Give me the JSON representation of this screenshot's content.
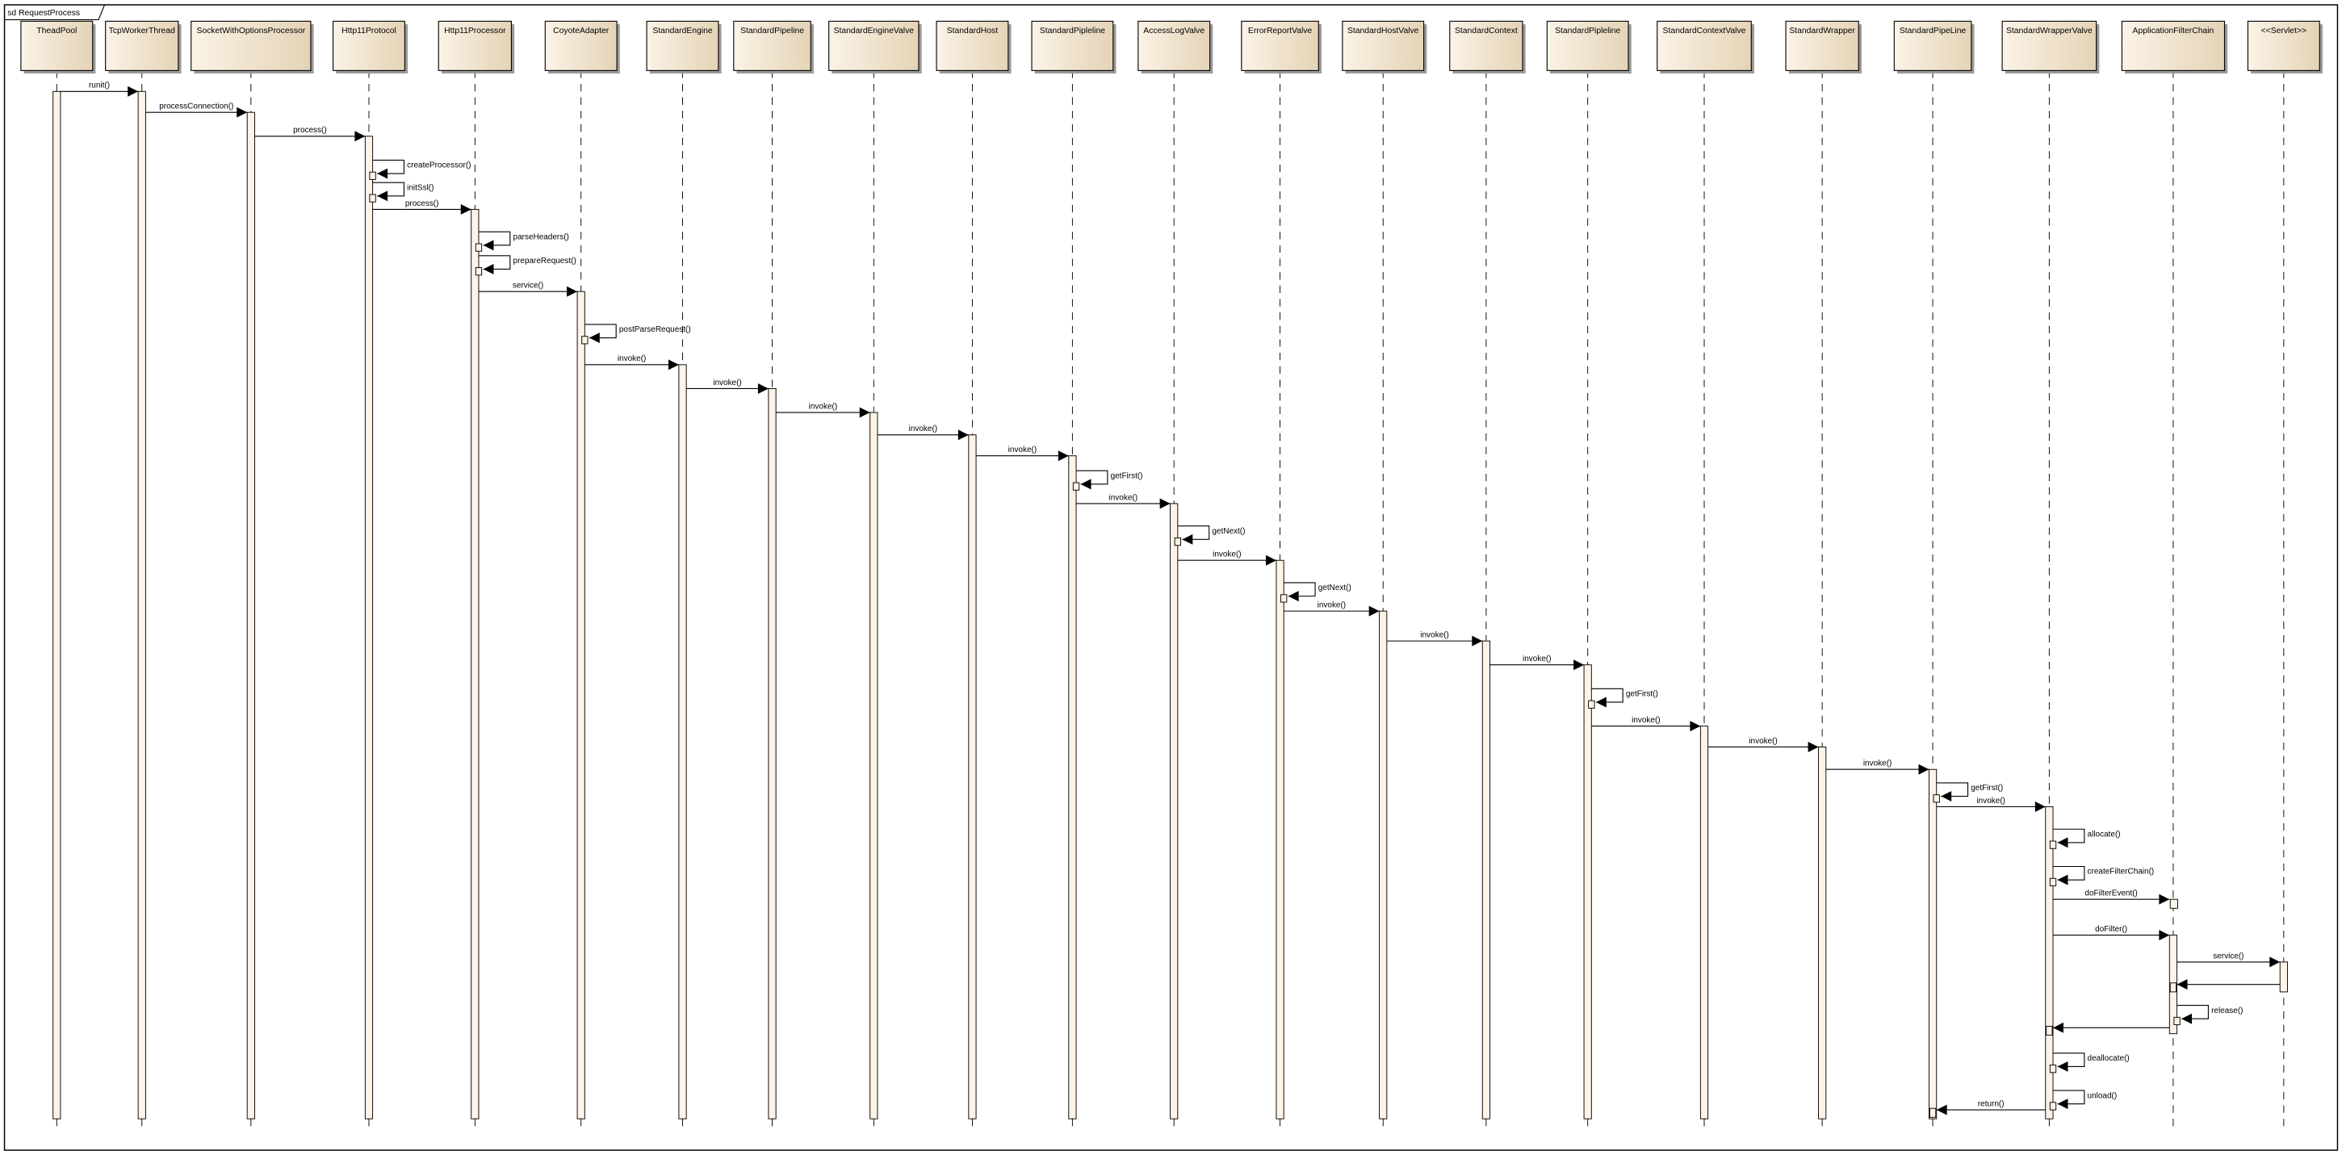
{
  "frame": {
    "title": "sd RequestProcess"
  },
  "colors": {
    "box_light": "#fbf3e6",
    "box_dark": "#e4d3b6",
    "activation": "#fdf3e6",
    "line": "#000000",
    "shadow": "#9a9a9a"
  },
  "participants": [
    "TheadPool",
    "TcpWorkerThread",
    "SocketWithOptionsProcessor",
    "Http11Protocol",
    "Http11Processor",
    "CoyoteAdapter",
    "StandardEngine",
    "StandardPipeline",
    "StandardEngineValve",
    "StandardHost",
    "StandardPipleline",
    "AccessLogValve",
    "ErrorReportValve",
    "StandardHostValve",
    "StandardContext",
    "StandardPipleline",
    "StandardContextValve",
    "StandardWrapper",
    "StandardPipeLine",
    "StandardWrapperValve",
    "ApplicationFilterChain",
    "<<Servlet>>"
  ],
  "messages": [
    {
      "label": "runit()",
      "from": 0,
      "to": 1,
      "kind": "call"
    },
    {
      "label": "processConnection()",
      "from": 1,
      "to": 2,
      "kind": "call"
    },
    {
      "label": "process()",
      "from": 2,
      "to": 3,
      "kind": "call"
    },
    {
      "label": "createProcessor()",
      "from": 3,
      "to": 3,
      "kind": "self"
    },
    {
      "label": "initSsl()",
      "from": 3,
      "to": 3,
      "kind": "self"
    },
    {
      "label": "process()",
      "from": 3,
      "to": 4,
      "kind": "call"
    },
    {
      "label": "parseHeaders()",
      "from": 4,
      "to": 4,
      "kind": "self"
    },
    {
      "label": "prepareRequest()",
      "from": 4,
      "to": 4,
      "kind": "self"
    },
    {
      "label": "service()",
      "from": 4,
      "to": 5,
      "kind": "call"
    },
    {
      "label": "postParseRequest()",
      "from": 5,
      "to": 5,
      "kind": "self"
    },
    {
      "label": "invoke()",
      "from": 5,
      "to": 6,
      "kind": "call"
    },
    {
      "label": "invoke()",
      "from": 6,
      "to": 7,
      "kind": "call"
    },
    {
      "label": "invoke()",
      "from": 7,
      "to": 8,
      "kind": "call"
    },
    {
      "label": "invoke()",
      "from": 8,
      "to": 9,
      "kind": "call"
    },
    {
      "label": "invoke()",
      "from": 9,
      "to": 10,
      "kind": "call"
    },
    {
      "label": "getFirst()",
      "from": 10,
      "to": 10,
      "kind": "self"
    },
    {
      "label": "invoke()",
      "from": 10,
      "to": 11,
      "kind": "call"
    },
    {
      "label": "getNext()",
      "from": 11,
      "to": 11,
      "kind": "self"
    },
    {
      "label": "invoke()",
      "from": 11,
      "to": 12,
      "kind": "call"
    },
    {
      "label": "getNext()",
      "from": 12,
      "to": 12,
      "kind": "self"
    },
    {
      "label": "invoke()",
      "from": 12,
      "to": 13,
      "kind": "call"
    },
    {
      "label": "invoke()",
      "from": 13,
      "to": 14,
      "kind": "call"
    },
    {
      "label": "invoke()",
      "from": 14,
      "to": 15,
      "kind": "call"
    },
    {
      "label": "getFirst()",
      "from": 15,
      "to": 15,
      "kind": "self"
    },
    {
      "label": "invoke()",
      "from": 15,
      "to": 16,
      "kind": "call"
    },
    {
      "label": "invoke()",
      "from": 16,
      "to": 17,
      "kind": "call"
    },
    {
      "label": "invoke()",
      "from": 17,
      "to": 18,
      "kind": "call"
    },
    {
      "label": "getFirst()",
      "from": 18,
      "to": 18,
      "kind": "self"
    },
    {
      "label": "invoke()",
      "from": 18,
      "to": 19,
      "kind": "call"
    },
    {
      "label": "allocate()",
      "from": 19,
      "to": 19,
      "kind": "self"
    },
    {
      "label": "createFilterChain()",
      "from": 19,
      "to": 19,
      "kind": "self"
    },
    {
      "label": "doFilterEvent()",
      "from": 19,
      "to": 20,
      "kind": "call"
    },
    {
      "label": "doFilter()",
      "from": 19,
      "to": 20,
      "kind": "call"
    },
    {
      "label": "service()",
      "from": 20,
      "to": 21,
      "kind": "call"
    },
    {
      "label": "",
      "from": 21,
      "to": 20,
      "kind": "return"
    },
    {
      "label": "release()",
      "from": 20,
      "to": 20,
      "kind": "self"
    },
    {
      "label": "",
      "from": 20,
      "to": 19,
      "kind": "return"
    },
    {
      "label": "deallocate()",
      "from": 19,
      "to": 19,
      "kind": "self"
    },
    {
      "label": "unload()",
      "from": 19,
      "to": 19,
      "kind": "self"
    },
    {
      "label": "return()",
      "from": 19,
      "to": 18,
      "kind": "return"
    }
  ]
}
